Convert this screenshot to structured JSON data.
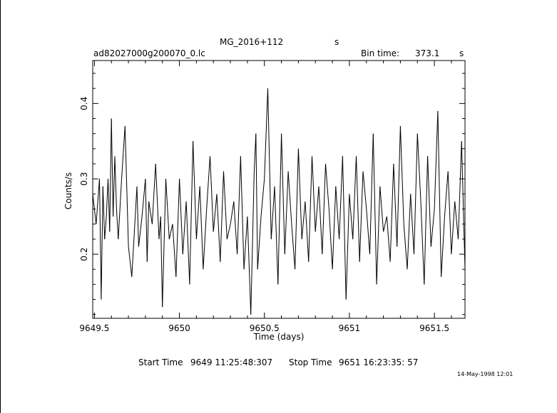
{
  "header": {
    "source": "MG_2016+112",
    "source_unit": "s",
    "filename": "ad82027000g200070_0.lc",
    "bin_label": "Bin time:",
    "bin_value": "373.1",
    "bin_unit": "s"
  },
  "footer": {
    "start_label": "Start Time",
    "start_value": "9649 11:25:48:307",
    "stop_label": "Stop Time",
    "stop_value": "9651 16:23:35: 57",
    "stamp": "14-May-1998 12:01"
  },
  "chart_data": {
    "type": "line",
    "title": "MG_2016+112",
    "xlabel": "Time (days)",
    "ylabel": "Counts/s",
    "xlim": [
      9649.49,
      9651.68
    ],
    "ylim": [
      0.115,
      0.457
    ],
    "xticks": [
      {
        "value": 9649.5,
        "label": "9649.5"
      },
      {
        "value": 9650.0,
        "label": "9650"
      },
      {
        "value": 9650.5,
        "label": "9650.5"
      },
      {
        "value": 9651.0,
        "label": "9651"
      },
      {
        "value": 9651.5,
        "label": "9651.5"
      }
    ],
    "yticks": [
      {
        "value": 0.2,
        "label": "0.2"
      },
      {
        "value": 0.3,
        "label": "0.3"
      },
      {
        "value": 0.4,
        "label": "0.4"
      }
    ],
    "grid": false,
    "series": [
      {
        "x": [
          9649.49,
          9649.51,
          9649.53,
          9649.54,
          9649.55,
          9649.56,
          9649.57,
          9649.58,
          9649.59,
          9649.6,
          9649.61,
          9649.62,
          9649.63,
          9649.64,
          9649.66,
          9649.68,
          9649.7,
          9649.72,
          9649.74,
          9649.75,
          9649.76,
          9649.78,
          9649.8,
          9649.81,
          9649.82,
          9649.84,
          9649.86,
          9649.88,
          9649.89,
          9649.9,
          9649.92,
          9649.94,
          9649.96,
          9649.98,
          9650.0,
          9650.02,
          9650.04,
          9650.06,
          9650.08,
          9650.1,
          9650.12,
          9650.14,
          9650.16,
          9650.18,
          9650.2,
          9650.22,
          9650.24,
          9650.26,
          9650.28,
          9650.3,
          9650.32,
          9650.34,
          9650.36,
          9650.38,
          9650.4,
          9650.42,
          9650.44,
          9650.45,
          9650.46,
          9650.48,
          9650.5,
          9650.52,
          9650.54,
          9650.56,
          9650.58,
          9650.6,
          9650.62,
          9650.64,
          9650.66,
          9650.68,
          9650.7,
          9650.72,
          9650.74,
          9650.76,
          9650.78,
          9650.8,
          9650.82,
          9650.84,
          9650.86,
          9650.88,
          9650.9,
          9650.92,
          9650.94,
          9650.96,
          9650.98,
          9651.0,
          9651.02,
          9651.04,
          9651.06,
          9651.08,
          9651.1,
          9651.12,
          9651.14,
          9651.16,
          9651.18,
          9651.2,
          9651.22,
          9651.24,
          9651.26,
          9651.28,
          9651.3,
          9651.32,
          9651.34,
          9651.36,
          9651.38,
          9651.4,
          9651.42,
          9651.44,
          9651.46,
          9651.48,
          9651.5,
          9651.52,
          9651.54,
          9651.56,
          9651.58,
          9651.6,
          9651.62,
          9651.64,
          9651.66,
          9651.68
        ],
        "y": [
          0.28,
          0.24,
          0.3,
          0.14,
          0.29,
          0.22,
          0.25,
          0.3,
          0.23,
          0.38,
          0.25,
          0.33,
          0.26,
          0.22,
          0.3,
          0.37,
          0.21,
          0.17,
          0.25,
          0.29,
          0.21,
          0.25,
          0.3,
          0.19,
          0.27,
          0.24,
          0.32,
          0.22,
          0.25,
          0.13,
          0.3,
          0.22,
          0.24,
          0.17,
          0.3,
          0.2,
          0.27,
          0.16,
          0.35,
          0.22,
          0.29,
          0.18,
          0.26,
          0.33,
          0.23,
          0.28,
          0.19,
          0.31,
          0.22,
          0.24,
          0.27,
          0.2,
          0.33,
          0.18,
          0.25,
          0.12,
          0.31,
          0.36,
          0.18,
          0.25,
          0.3,
          0.42,
          0.22,
          0.29,
          0.16,
          0.36,
          0.2,
          0.31,
          0.24,
          0.18,
          0.34,
          0.22,
          0.27,
          0.19,
          0.33,
          0.23,
          0.29,
          0.2,
          0.32,
          0.26,
          0.18,
          0.29,
          0.22,
          0.33,
          0.14,
          0.28,
          0.22,
          0.33,
          0.19,
          0.31,
          0.26,
          0.2,
          0.36,
          0.16,
          0.29,
          0.23,
          0.25,
          0.19,
          0.32,
          0.21,
          0.37,
          0.24,
          0.18,
          0.28,
          0.2,
          0.36,
          0.27,
          0.16,
          0.33,
          0.21,
          0.26,
          0.39,
          0.17,
          0.25,
          0.31,
          0.2,
          0.27,
          0.22,
          0.35,
          0.18
        ]
      }
    ]
  }
}
